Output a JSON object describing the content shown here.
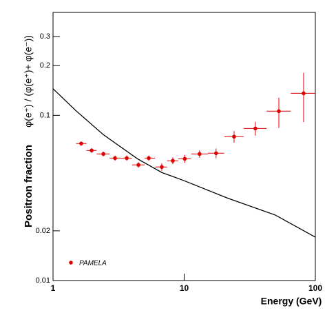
{
  "chart_data": {
    "type": "scatter",
    "xlabel": "Energy (GeV)",
    "ylabel": "Positron fraction",
    "ylabel2": "φ(e⁺) / (φ(e⁺)+ φ(e⁻))",
    "xlog": true,
    "ylog": true,
    "xlim": [
      1,
      100
    ],
    "ylim": [
      0.01,
      0.42
    ],
    "xticks": [
      1,
      10,
      100
    ],
    "yticks": [
      0.01,
      0.02,
      0.1,
      0.2,
      0.3
    ],
    "legend": "bottom-left",
    "series": [
      {
        "name": "PAMELA",
        "color": "#e00000",
        "x": [
          1.64,
          1.97,
          2.42,
          2.97,
          3.65,
          4.48,
          5.37,
          6.75,
          8.19,
          10.1,
          13.1,
          17.5,
          24,
          34.9,
          52.7,
          81.4
        ],
        "values": [
          0.0675,
          0.0613,
          0.0584,
          0.0551,
          0.0551,
          0.0501,
          0.0551,
          0.0487,
          0.0531,
          0.0546,
          0.0584,
          0.059,
          0.0743,
          0.0833,
          0.106,
          0.136
        ],
        "yerr": [
          0.002,
          0.002,
          0.002,
          0.002,
          0.002,
          0.002,
          0.002,
          0.0025,
          0.0025,
          0.003,
          0.003,
          0.004,
          0.006,
          0.008,
          0.022,
          0.045
        ],
        "x_low": [
          1.5,
          1.8,
          2.15,
          2.7,
          3.3,
          4.0,
          5.0,
          6.0,
          7.4,
          9.0,
          11.3,
          15.2,
          20.2,
          28.4,
          42.5,
          65
        ],
        "x_high": [
          1.8,
          2.15,
          2.7,
          3.3,
          4.0,
          5.0,
          6.0,
          7.4,
          9.0,
          11.3,
          15.2,
          20.2,
          28.4,
          42.5,
          65,
          100
        ]
      },
      {
        "color": "#000000",
        "line": true,
        "x": [
          1,
          1.49,
          2.42,
          4.4,
          6.75,
          10,
          21.3,
          49.6,
          100
        ],
        "values": [
          0.145,
          0.107,
          0.0764,
          0.0546,
          0.0451,
          0.0402,
          0.0316,
          0.0249,
          0.0183
        ]
      }
    ]
  }
}
